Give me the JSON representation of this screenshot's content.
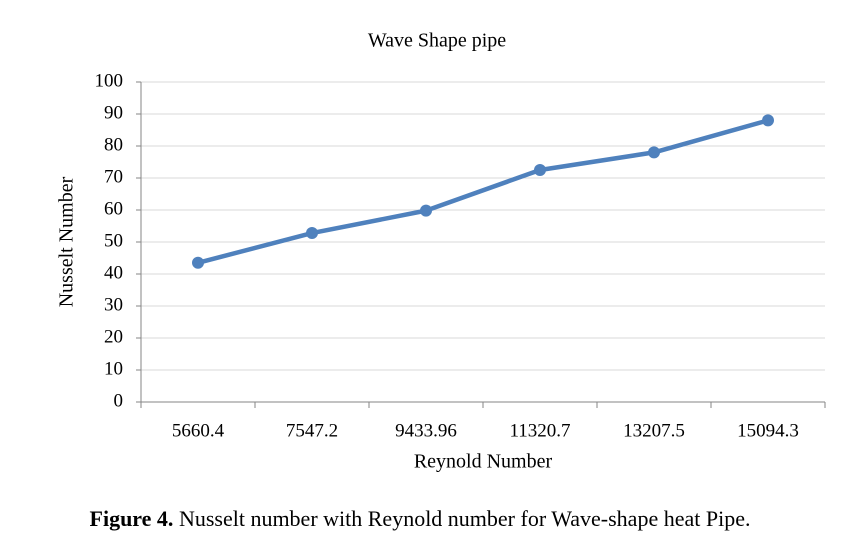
{
  "chart_data": {
    "type": "line",
    "title": "Wave Shape pipe",
    "x_label": "Reynold Number",
    "y_label": "Nusselt Number",
    "categories": [
      "5660.4",
      "7547.2",
      "9433.96",
      "11320.7",
      "13207.5",
      "15094.3"
    ],
    "series": [
      {
        "name": "Nusselt Number",
        "color": "#4f81bd",
        "values": [
          43.5,
          52.8,
          59.8,
          72.5,
          78,
          88
        ]
      }
    ],
    "ylim": [
      0,
      100
    ],
    "yticks": [
      0,
      10,
      20,
      30,
      40,
      50,
      60,
      70,
      80,
      90,
      100
    ],
    "grid": true
  },
  "figure": {
    "label": "Figure 4.",
    "caption": "Nusselt number with Reynold number for Wave-shape heat Pipe."
  }
}
